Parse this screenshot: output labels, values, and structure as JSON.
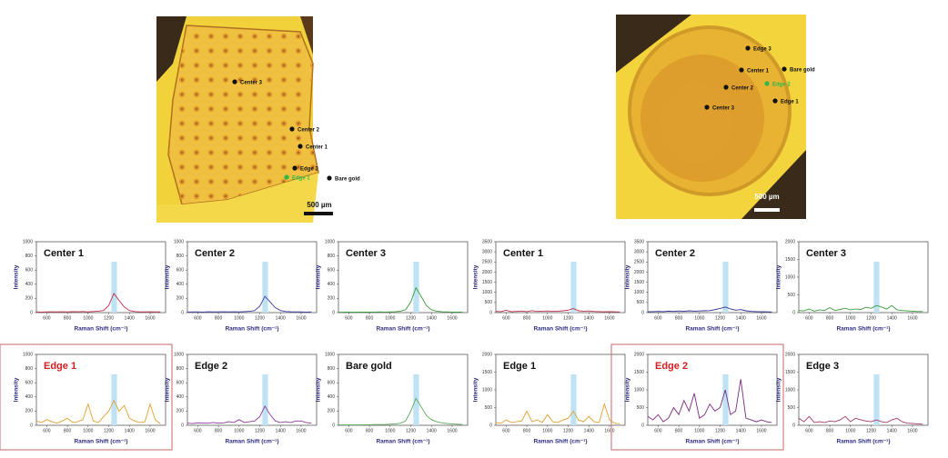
{
  "images": [
    {
      "labels": [
        {
          "text": "Center 3",
          "color": "#111111"
        },
        {
          "text": "Center 2",
          "color": "#111111"
        },
        {
          "text": "Center 1",
          "color": "#111111"
        },
        {
          "text": "Edge 2",
          "color": "#111111"
        },
        {
          "text": "Edge 1",
          "color": "#2eb84a"
        },
        {
          "text": "Bare gold",
          "color": "#111111"
        }
      ],
      "scale_bar": "500 µm"
    },
    {
      "labels": [
        {
          "text": "Edge 3",
          "color": "#111111"
        },
        {
          "text": "Center 1",
          "color": "#111111"
        },
        {
          "text": "Bare gold",
          "color": "#111111"
        },
        {
          "text": "Edge 2",
          "color": "#2eb84a"
        },
        {
          "text": "Center 2",
          "color": "#111111"
        },
        {
          "text": "Edge 1",
          "color": "#111111"
        },
        {
          "text": "Center 3",
          "color": "#111111"
        }
      ],
      "scale_bar": "500 µm"
    }
  ],
  "chart_data": [
    {
      "type": "line",
      "title": "Center 1",
      "x_label": "Raman Shift (cm⁻¹)",
      "y_label": "Intensity",
      "color": "#c0304a",
      "highlight_band": [
        1225,
        1280
      ],
      "xlim": [
        500,
        1750
      ],
      "xticks": [
        600,
        800,
        1000,
        1200,
        1400,
        1600
      ],
      "ylim": [
        0,
        1000
      ],
      "yticks": [
        0,
        200,
        400,
        600,
        800,
        1000
      ],
      "x": [
        500,
        550,
        600,
        650,
        700,
        750,
        800,
        850,
        900,
        950,
        1000,
        1050,
        1100,
        1150,
        1200,
        1250,
        1300,
        1350,
        1400,
        1450,
        1500,
        1550,
        1600,
        1650,
        1700
      ],
      "values": [
        10,
        8,
        10,
        12,
        10,
        12,
        10,
        14,
        12,
        15,
        10,
        15,
        20,
        30,
        100,
        270,
        170,
        80,
        30,
        15,
        10,
        10,
        12,
        10,
        10
      ]
    },
    {
      "type": "line",
      "title": "Center 2",
      "x_label": "Raman Shift (cm⁻¹)",
      "y_label": "Intensity",
      "color": "#3a3aa8",
      "highlight_band": [
        1225,
        1280
      ],
      "xlim": [
        500,
        1750
      ],
      "xticks": [
        600,
        800,
        1000,
        1200,
        1400,
        1600
      ],
      "ylim": [
        0,
        1000
      ],
      "yticks": [
        0,
        200,
        400,
        600,
        800,
        1000
      ],
      "x": [
        500,
        550,
        600,
        650,
        700,
        750,
        800,
        850,
        900,
        950,
        1000,
        1050,
        1100,
        1150,
        1200,
        1250,
        1300,
        1350,
        1400,
        1450,
        1500,
        1550,
        1600,
        1650,
        1700
      ],
      "values": [
        8,
        10,
        10,
        8,
        12,
        10,
        10,
        12,
        10,
        12,
        10,
        14,
        18,
        28,
        90,
        230,
        150,
        70,
        30,
        15,
        12,
        10,
        10,
        8,
        10
      ]
    },
    {
      "type": "line",
      "title": "Center 3",
      "x_label": "Raman Shift (cm⁻¹)",
      "y_label": "Intensity",
      "color": "#3a9a3a",
      "highlight_band": [
        1225,
        1280
      ],
      "xlim": [
        500,
        1750
      ],
      "xticks": [
        600,
        800,
        1000,
        1200,
        1400,
        1600
      ],
      "ylim": [
        0,
        1000
      ],
      "yticks": [
        0,
        200,
        400,
        600,
        800,
        1000
      ],
      "x": [
        500,
        550,
        600,
        650,
        700,
        750,
        800,
        850,
        900,
        950,
        1000,
        1050,
        1100,
        1150,
        1200,
        1250,
        1300,
        1350,
        1400,
        1450,
        1500,
        1550,
        1600,
        1650,
        1700
      ],
      "values": [
        5,
        5,
        8,
        5,
        6,
        8,
        6,
        8,
        10,
        8,
        10,
        12,
        20,
        40,
        150,
        350,
        230,
        100,
        40,
        20,
        12,
        10,
        8,
        8,
        6
      ]
    },
    {
      "type": "line",
      "title": "Center 1",
      "x_label": "Raman Shift (cm⁻¹)",
      "y_label": "Intensity",
      "color": "#c0304a",
      "highlight_band": [
        1225,
        1280
      ],
      "xlim": [
        500,
        1750
      ],
      "xticks": [
        600,
        800,
        1000,
        1200,
        1400,
        1600
      ],
      "ylim": [
        0,
        3500
      ],
      "yticks": [
        0,
        500,
        1000,
        1500,
        2000,
        2500,
        3000,
        3500
      ],
      "x": [
        500,
        550,
        600,
        650,
        700,
        750,
        800,
        850,
        900,
        950,
        1000,
        1050,
        1100,
        1150,
        1200,
        1250,
        1300,
        1350,
        1400,
        1450,
        1500,
        1550,
        1600,
        1650,
        1700
      ],
      "values": [
        60,
        50,
        120,
        40,
        60,
        80,
        50,
        100,
        60,
        70,
        80,
        60,
        70,
        90,
        120,
        200,
        90,
        70,
        80,
        60,
        50,
        40,
        50,
        40,
        30
      ]
    },
    {
      "type": "line",
      "title": "Center 2",
      "x_label": "Raman Shift (cm⁻¹)",
      "y_label": "Intensity",
      "color": "#2a2a90",
      "highlight_band": [
        1225,
        1280
      ],
      "xlim": [
        500,
        1750
      ],
      "xticks": [
        600,
        800,
        1000,
        1200,
        1400,
        1600
      ],
      "ylim": [
        0,
        3500
      ],
      "yticks": [
        0,
        500,
        1000,
        1500,
        2000,
        2500,
        3000,
        3500
      ],
      "x": [
        500,
        550,
        600,
        650,
        700,
        750,
        800,
        850,
        900,
        950,
        1000,
        1050,
        1100,
        1150,
        1200,
        1250,
        1300,
        1350,
        1400,
        1450,
        1500,
        1550,
        1600,
        1650,
        1700
      ],
      "values": [
        40,
        50,
        60,
        50,
        70,
        60,
        80,
        60,
        90,
        70,
        80,
        90,
        100,
        150,
        200,
        280,
        180,
        120,
        150,
        90,
        60,
        50,
        40,
        40,
        30
      ]
    },
    {
      "type": "line",
      "title": "Center 3",
      "x_label": "Raman Shift (cm⁻¹)",
      "y_label": "Intensity",
      "color": "#3a9a3a",
      "highlight_band": [
        1225,
        1280
      ],
      "xlim": [
        500,
        1750
      ],
      "xticks": [
        600,
        800,
        1000,
        1200,
        1400,
        1600
      ],
      "ylim": [
        0,
        2000
      ],
      "yticks": [
        0,
        500,
        1000,
        1500,
        2000
      ],
      "x": [
        500,
        550,
        600,
        650,
        700,
        750,
        800,
        850,
        900,
        950,
        1000,
        1050,
        1100,
        1150,
        1200,
        1250,
        1300,
        1350,
        1400,
        1450,
        1500,
        1550,
        1600,
        1650,
        1700
      ],
      "values": [
        60,
        50,
        100,
        40,
        80,
        60,
        140,
        60,
        90,
        120,
        80,
        100,
        90,
        150,
        120,
        200,
        160,
        100,
        200,
        80,
        60,
        50,
        40,
        30,
        30
      ]
    },
    {
      "type": "line",
      "title": "Edge 1",
      "highlight": true,
      "x_label": "Raman Shift (cm⁻¹)",
      "y_label": "Intensity",
      "color": "#e0a030",
      "highlight_band": [
        1225,
        1280
      ],
      "xlim": [
        500,
        1750
      ],
      "xticks": [
        600,
        800,
        1000,
        1200,
        1400,
        1600
      ],
      "ylim": [
        0,
        1000
      ],
      "yticks": [
        0,
        200,
        400,
        600,
        800,
        1000
      ],
      "x": [
        500,
        550,
        600,
        650,
        700,
        750,
        800,
        850,
        900,
        950,
        1000,
        1050,
        1100,
        1150,
        1200,
        1250,
        1300,
        1350,
        1400,
        1450,
        1500,
        1550,
        1600,
        1650,
        1700
      ],
      "values": [
        60,
        40,
        80,
        50,
        30,
        60,
        100,
        40,
        50,
        80,
        300,
        60,
        40,
        120,
        200,
        350,
        200,
        280,
        100,
        60,
        40,
        50,
        300,
        80,
        20
      ]
    },
    {
      "type": "line",
      "title": "Edge 2",
      "x_label": "Raman Shift (cm⁻¹)",
      "y_label": "Intensity",
      "color": "#8a3a9a",
      "highlight_band": [
        1225,
        1280
      ],
      "xlim": [
        500,
        1750
      ],
      "xticks": [
        600,
        800,
        1000,
        1200,
        1400,
        1600
      ],
      "ylim": [
        0,
        1000
      ],
      "yticks": [
        0,
        200,
        400,
        600,
        800,
        1000
      ],
      "x": [
        500,
        550,
        600,
        650,
        700,
        750,
        800,
        850,
        900,
        950,
        1000,
        1050,
        1100,
        1150,
        1200,
        1250,
        1300,
        1350,
        1400,
        1450,
        1500,
        1550,
        1600,
        1650,
        1700
      ],
      "values": [
        30,
        25,
        35,
        30,
        30,
        40,
        30,
        35,
        50,
        40,
        80,
        40,
        50,
        60,
        120,
        270,
        150,
        60,
        40,
        50,
        40,
        60,
        60,
        40,
        30
      ]
    },
    {
      "type": "line",
      "title": "Bare gold",
      "x_label": "Raman Shift (cm⁻¹)",
      "y_label": "Intensity",
      "color": "#5aaa5a",
      "highlight_band": [
        1225,
        1280
      ],
      "xlim": [
        500,
        1750
      ],
      "xticks": [
        600,
        800,
        1000,
        1200,
        1400,
        1600
      ],
      "ylim": [
        0,
        1000
      ],
      "yticks": [
        0,
        200,
        400,
        600,
        800,
        1000
      ],
      "x": [
        500,
        550,
        600,
        650,
        700,
        750,
        800,
        850,
        900,
        950,
        1000,
        1050,
        1100,
        1150,
        1200,
        1250,
        1300,
        1350,
        1400,
        1450,
        1500,
        1550,
        1600,
        1650,
        1700
      ],
      "values": [
        5,
        5,
        5,
        5,
        5,
        8,
        8,
        10,
        10,
        12,
        15,
        20,
        30,
        60,
        200,
        380,
        260,
        140,
        80,
        50,
        35,
        25,
        20,
        15,
        10
      ]
    },
    {
      "type": "line",
      "title": "Edge 1",
      "x_label": "Raman Shift (cm⁻¹)",
      "y_label": "Intensity",
      "color": "#e0a030",
      "highlight_band": [
        1225,
        1280
      ],
      "xlim": [
        500,
        1750
      ],
      "xticks": [
        600,
        800,
        1000,
        1200,
        1400,
        1600
      ],
      "ylim": [
        0,
        2000
      ],
      "yticks": [
        0,
        500,
        1000,
        1500,
        2000
      ],
      "x": [
        500,
        550,
        600,
        650,
        700,
        750,
        800,
        850,
        900,
        950,
        1000,
        1050,
        1100,
        1150,
        1200,
        1250,
        1300,
        1350,
        1400,
        1450,
        1500,
        1550,
        1600,
        1650,
        1700
      ],
      "values": [
        80,
        60,
        150,
        80,
        100,
        120,
        400,
        100,
        150,
        80,
        300,
        100,
        80,
        150,
        200,
        400,
        150,
        100,
        250,
        100,
        80,
        600,
        150,
        60,
        40
      ]
    },
    {
      "type": "line",
      "title": "Edge 2",
      "highlight": true,
      "x_label": "Raman Shift (cm⁻¹)",
      "y_label": "Intensity",
      "color": "#7a2a80",
      "highlight_band": [
        1225,
        1280
      ],
      "xlim": [
        500,
        1750
      ],
      "xticks": [
        600,
        800,
        1000,
        1200,
        1400,
        1600
      ],
      "ylim": [
        0,
        2000
      ],
      "yticks": [
        0,
        500,
        1000,
        1500,
        2000
      ],
      "x": [
        500,
        550,
        600,
        650,
        700,
        750,
        800,
        850,
        900,
        950,
        1000,
        1050,
        1100,
        1150,
        1200,
        1250,
        1300,
        1350,
        1400,
        1450,
        1500,
        1550,
        1600,
        1650,
        1700
      ],
      "values": [
        250,
        150,
        300,
        100,
        200,
        500,
        300,
        700,
        400,
        900,
        200,
        300,
        600,
        400,
        500,
        1000,
        300,
        400,
        1300,
        200,
        150,
        100,
        150,
        100,
        80
      ]
    },
    {
      "type": "line",
      "title": "Edge 3",
      "x_label": "Raman Shift (cm⁻¹)",
      "y_label": "Intensity",
      "color": "#a03a6a",
      "highlight_band": [
        1225,
        1280
      ],
      "xlim": [
        500,
        1750
      ],
      "xticks": [
        600,
        800,
        1000,
        1200,
        1400,
        1600
      ],
      "ylim": [
        0,
        2000
      ],
      "yticks": [
        0,
        500,
        1000,
        1500,
        2000
      ],
      "x": [
        500,
        550,
        600,
        650,
        700,
        750,
        800,
        850,
        900,
        950,
        1000,
        1050,
        1100,
        1150,
        1200,
        1250,
        1300,
        1350,
        1400,
        1450,
        1500,
        1550,
        1600,
        1650,
        1700
      ],
      "values": [
        200,
        100,
        250,
        80,
        100,
        80,
        120,
        100,
        150,
        250,
        100,
        200,
        150,
        120,
        100,
        150,
        100,
        80,
        150,
        200,
        100,
        60,
        50,
        40,
        30
      ]
    }
  ]
}
